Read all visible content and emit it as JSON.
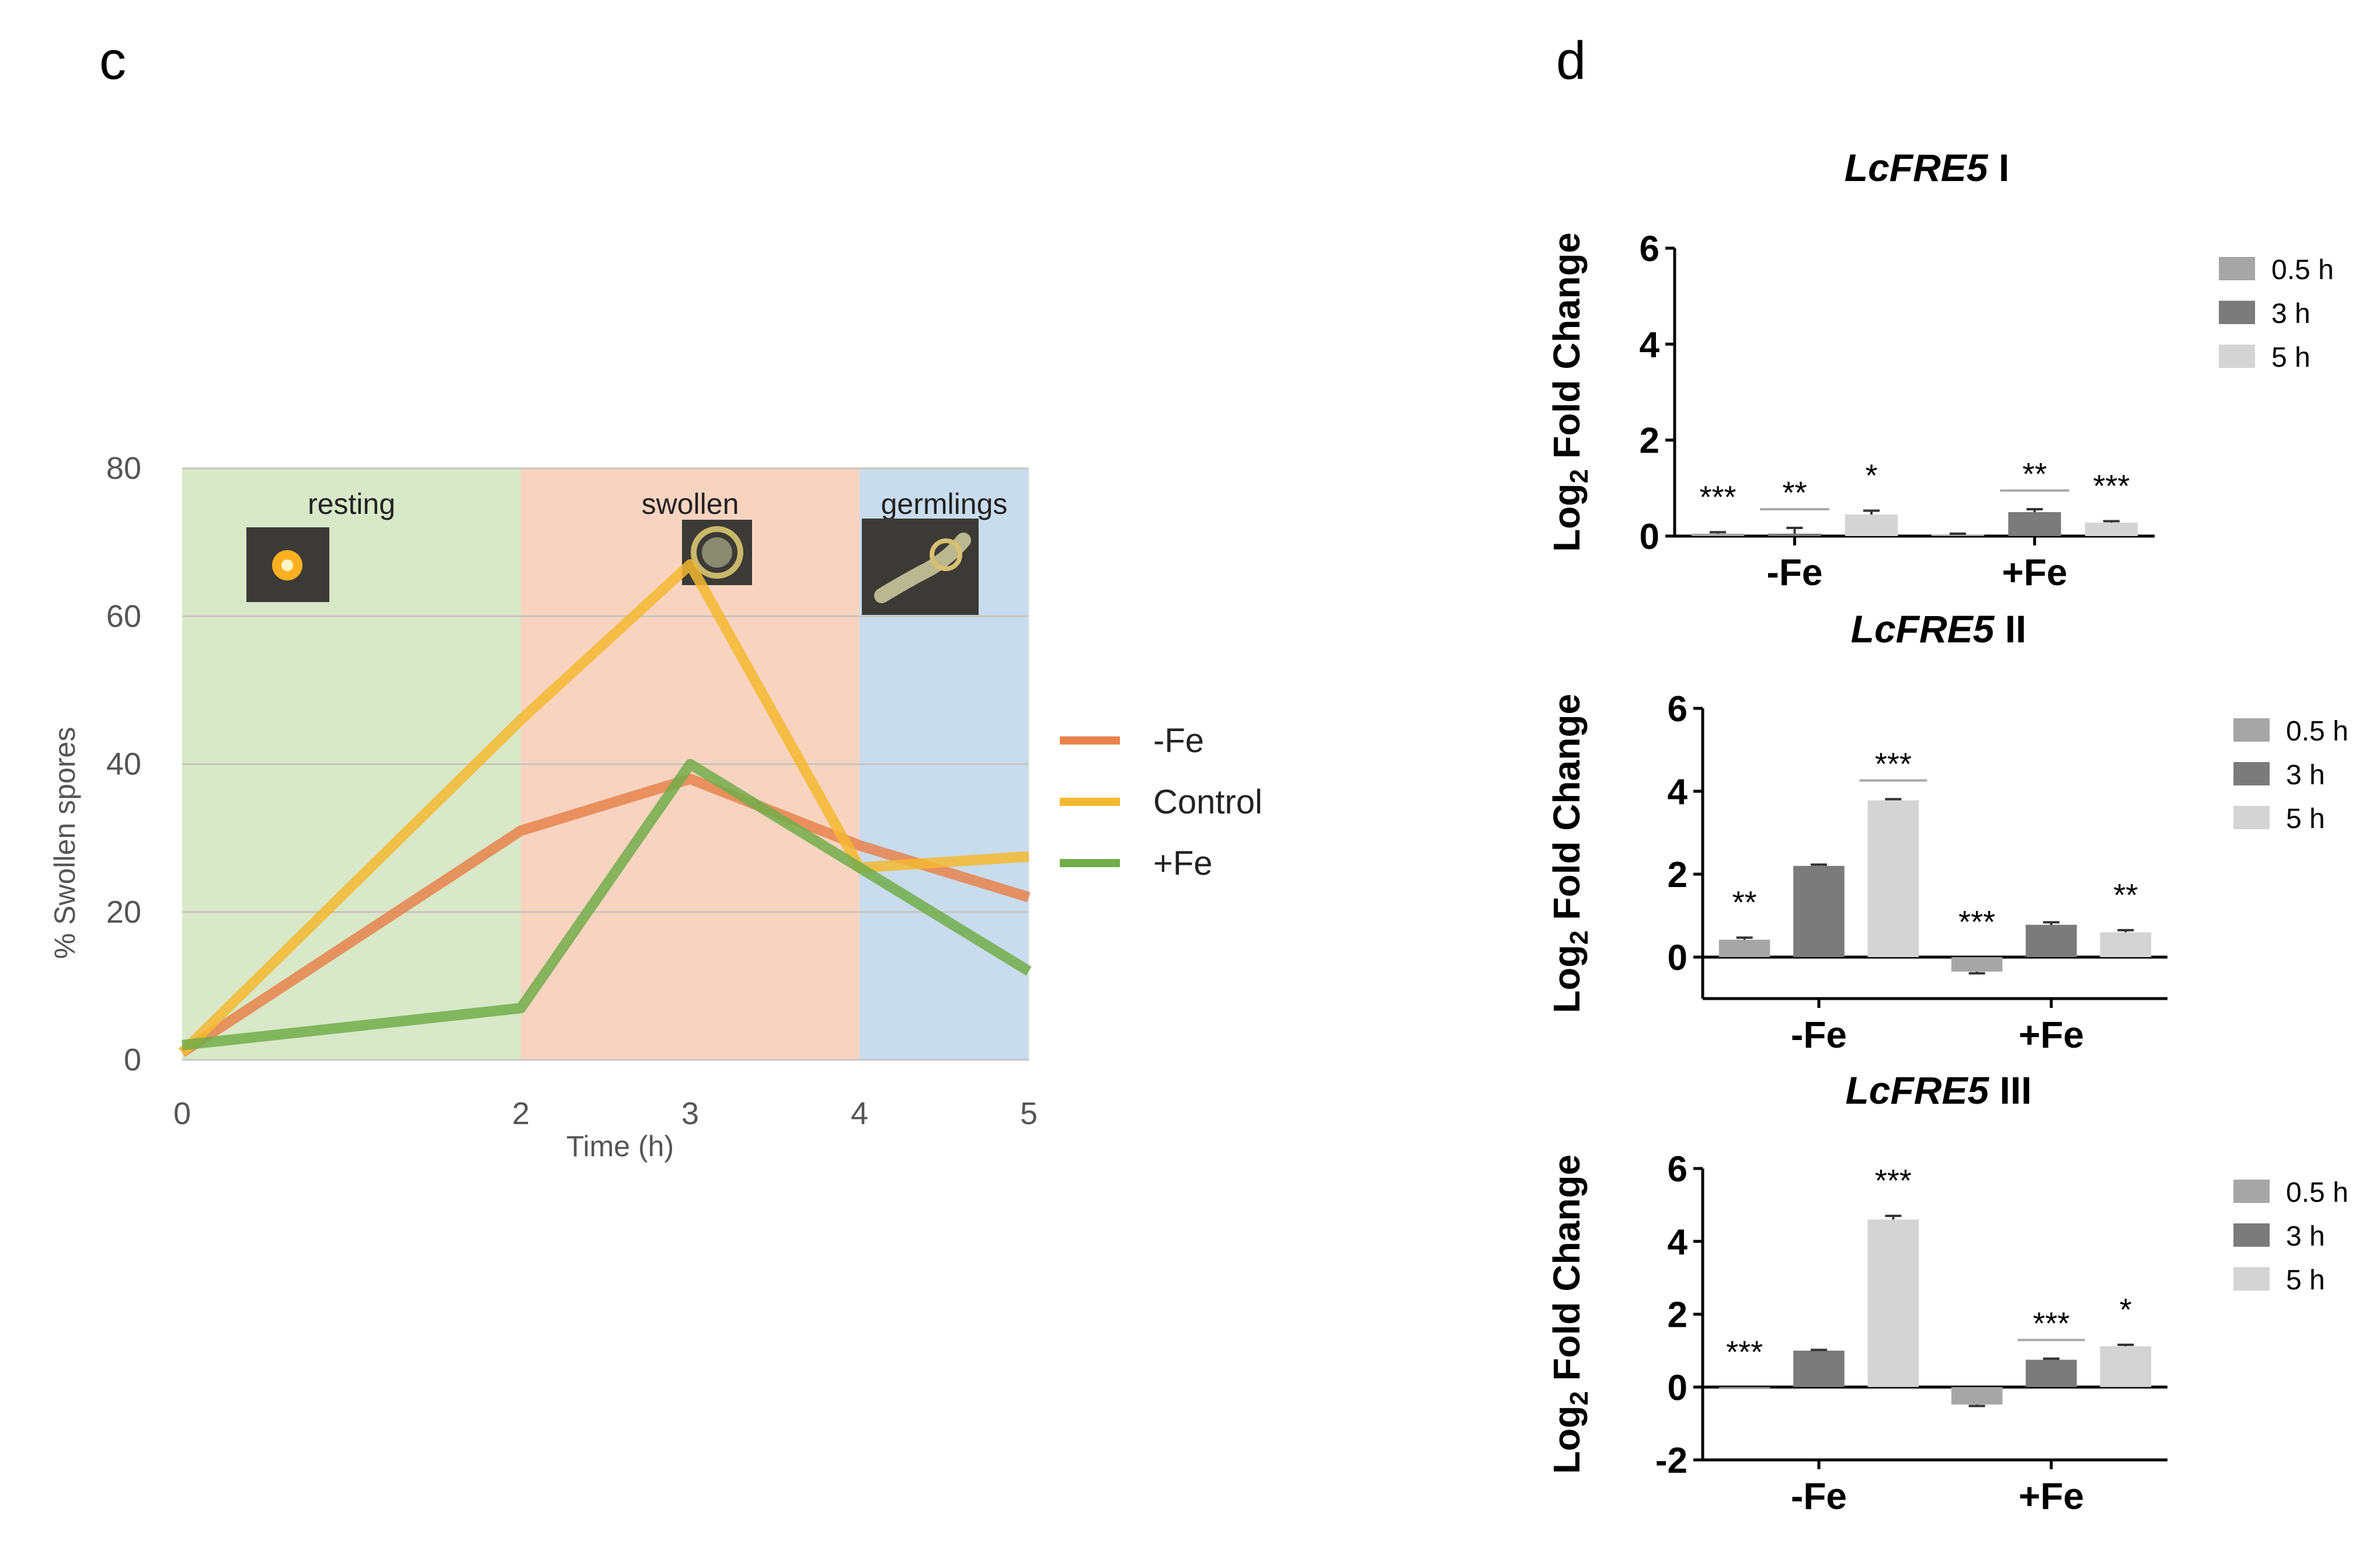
{
  "panel_labels": {
    "c": "c",
    "d": "d"
  },
  "chart_data": [
    {
      "id": "c",
      "type": "line",
      "title": "",
      "xlabel": "Time (h)",
      "ylabel": "% Swollen spores",
      "x": [
        0,
        2,
        3,
        4,
        5
      ],
      "x_ticks": [
        0,
        2,
        3,
        4,
        5
      ],
      "y_ticks": [
        0,
        20,
        40,
        60,
        80
      ],
      "xlim": [
        0,
        5
      ],
      "ylim": [
        0,
        80
      ],
      "grid": true,
      "legend": "right",
      "phases": [
        {
          "label": "resting",
          "from": 0,
          "to": 2,
          "color": "#d8e8c8"
        },
        {
          "label": "swollen",
          "from": 2,
          "to": 4,
          "color": "#f8d4c0"
        },
        {
          "label": "germlings",
          "from": 4,
          "to": 5,
          "color": "#c8dcee"
        }
      ],
      "series": [
        {
          "name": "-Fe",
          "color": "#e8834c",
          "values": [
            1,
            31,
            38,
            29,
            22
          ]
        },
        {
          "name": "Control",
          "color": "#f4b930",
          "values": [
            1,
            46,
            67,
            26,
            27.5
          ]
        },
        {
          "name": "+Fe",
          "color": "#72ad4a",
          "values": [
            2,
            7,
            40,
            26,
            12
          ]
        }
      ]
    },
    {
      "id": "d1",
      "type": "bar",
      "title_italic": "LcFRE5",
      "title_suffix": " I",
      "ylabel_main": "Log",
      "ylabel_sub": "2",
      "ylabel_rest": " Fold Change",
      "categories": [
        "-Fe",
        "+Fe"
      ],
      "y_ticks": [
        0,
        2,
        4,
        6
      ],
      "ylim": [
        0,
        6
      ],
      "legend": "right",
      "series": [
        {
          "name": "0.5 h",
          "color": "#a6a6a6",
          "values": [
            0.05,
            0.03
          ],
          "errors": [
            0.03,
            0.02
          ],
          "stars": [
            "***",
            ""
          ]
        },
        {
          "name": "3 h",
          "color": "#7b7b7b",
          "values": [
            0.05,
            0.5
          ],
          "errors": [
            0.12,
            0.06
          ],
          "stars": [
            "**",
            "**"
          ]
        },
        {
          "name": "5 h",
          "color": "#d4d4d4",
          "values": [
            0.45,
            0.28
          ],
          "errors": [
            0.08,
            0.03
          ],
          "stars": [
            "*",
            "***"
          ]
        }
      ]
    },
    {
      "id": "d2",
      "type": "bar",
      "title_italic": "LcFRE5",
      "title_suffix": " II",
      "ylabel_main": "Log",
      "ylabel_sub": "2",
      "ylabel_rest": " Fold Change",
      "categories": [
        "-Fe",
        "+Fe"
      ],
      "y_ticks": [
        0,
        2,
        4,
        6
      ],
      "ylim": [
        -1,
        6
      ],
      "legend": "right",
      "series": [
        {
          "name": "0.5 h",
          "color": "#a6a6a6",
          "values": [
            0.42,
            -0.35
          ],
          "errors": [
            0.05,
            0.04
          ],
          "stars": [
            "**",
            "***"
          ]
        },
        {
          "name": "3 h",
          "color": "#7b7b7b",
          "values": [
            2.2,
            0.78
          ],
          "errors": [
            0.03,
            0.06
          ],
          "stars": [
            "",
            ""
          ]
        },
        {
          "name": "5 h",
          "color": "#d4d4d4",
          "values": [
            3.78,
            0.6
          ],
          "errors": [
            0.03,
            0.05
          ],
          "stars": [
            "***",
            "**"
          ]
        }
      ]
    },
    {
      "id": "d3",
      "type": "bar",
      "title_italic": "LcFRE5",
      "title_suffix": " III",
      "ylabel_main": "Log",
      "ylabel_sub": "2",
      "ylabel_rest": " Fold Change",
      "categories": [
        "-Fe",
        "+Fe"
      ],
      "y_ticks": [
        -2,
        0,
        2,
        4,
        6
      ],
      "ylim": [
        -2,
        6
      ],
      "legend": "right",
      "series": [
        {
          "name": "0.5 h",
          "color": "#a6a6a6",
          "values": [
            0,
            -0.48
          ],
          "errors": [
            0,
            0.04
          ],
          "stars": [
            "***",
            ""
          ]
        },
        {
          "name": "3 h",
          "color": "#7b7b7b",
          "values": [
            1.0,
            0.75
          ],
          "errors": [
            0.02,
            0.03
          ],
          "stars": [
            "",
            "***"
          ]
        },
        {
          "name": "5 h",
          "color": "#d4d4d4",
          "values": [
            4.6,
            1.12
          ],
          "errors": [
            0.1,
            0.04
          ],
          "stars": [
            "***",
            "*"
          ]
        }
      ]
    }
  ]
}
